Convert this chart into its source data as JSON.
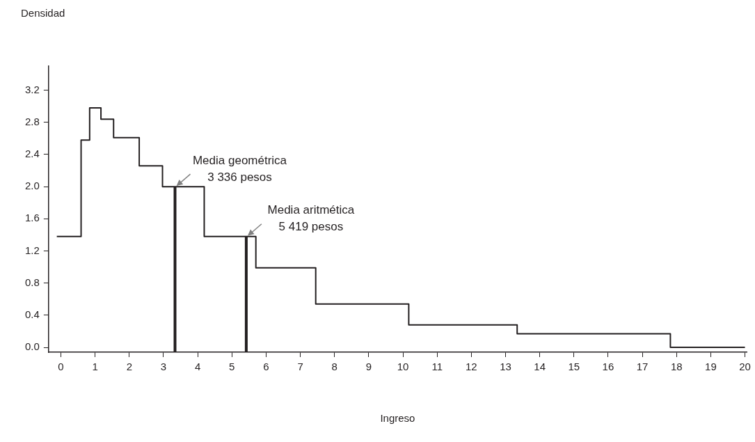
{
  "chart_data": {
    "type": "step",
    "xlabel": "Ingreso",
    "ylabel": "Densidad",
    "x": [
      -0.12,
      0.59,
      0.84,
      1.17,
      1.54,
      2.29,
      2.97,
      4.19,
      5.7,
      7.45,
      10.17,
      13.34,
      17.82,
      20
    ],
    "series": [
      {
        "color": "#231f20",
        "values": [
          1.38,
          2.58,
          2.98,
          2.84,
          2.61,
          2.26,
          2.0,
          1.38,
          0.99,
          0.54,
          0.28,
          0.17,
          0.0,
          0.0
        ]
      }
    ],
    "xlim": [
      -0.36,
      20.05
    ],
    "xticks": [
      0,
      1,
      2,
      3,
      4,
      5,
      6,
      7,
      8,
      9,
      10,
      11,
      12,
      13,
      14,
      15,
      16,
      17,
      18,
      19,
      20
    ],
    "ylim": [
      -0.06,
      3.5
    ],
    "yticks": [
      {
        "value": 0,
        "label": "0.0"
      },
      0.4,
      0.8,
      1.2,
      1.6,
      {
        "value": 2,
        "label": "2.0"
      },
      2.4,
      2.8,
      3.2
    ],
    "ref_lines": [
      {
        "axis": "x",
        "value": 3.336,
        "label": "Media geométrica\n3 336 pesos",
        "color": "#231f20"
      },
      {
        "axis": "x",
        "value": 5.419,
        "label": "Media aritmética\n5 419 pesos",
        "color": "#231f20"
      }
    ],
    "grid": false,
    "legend": false,
    "marker": "none",
    "line_style": "solid"
  }
}
